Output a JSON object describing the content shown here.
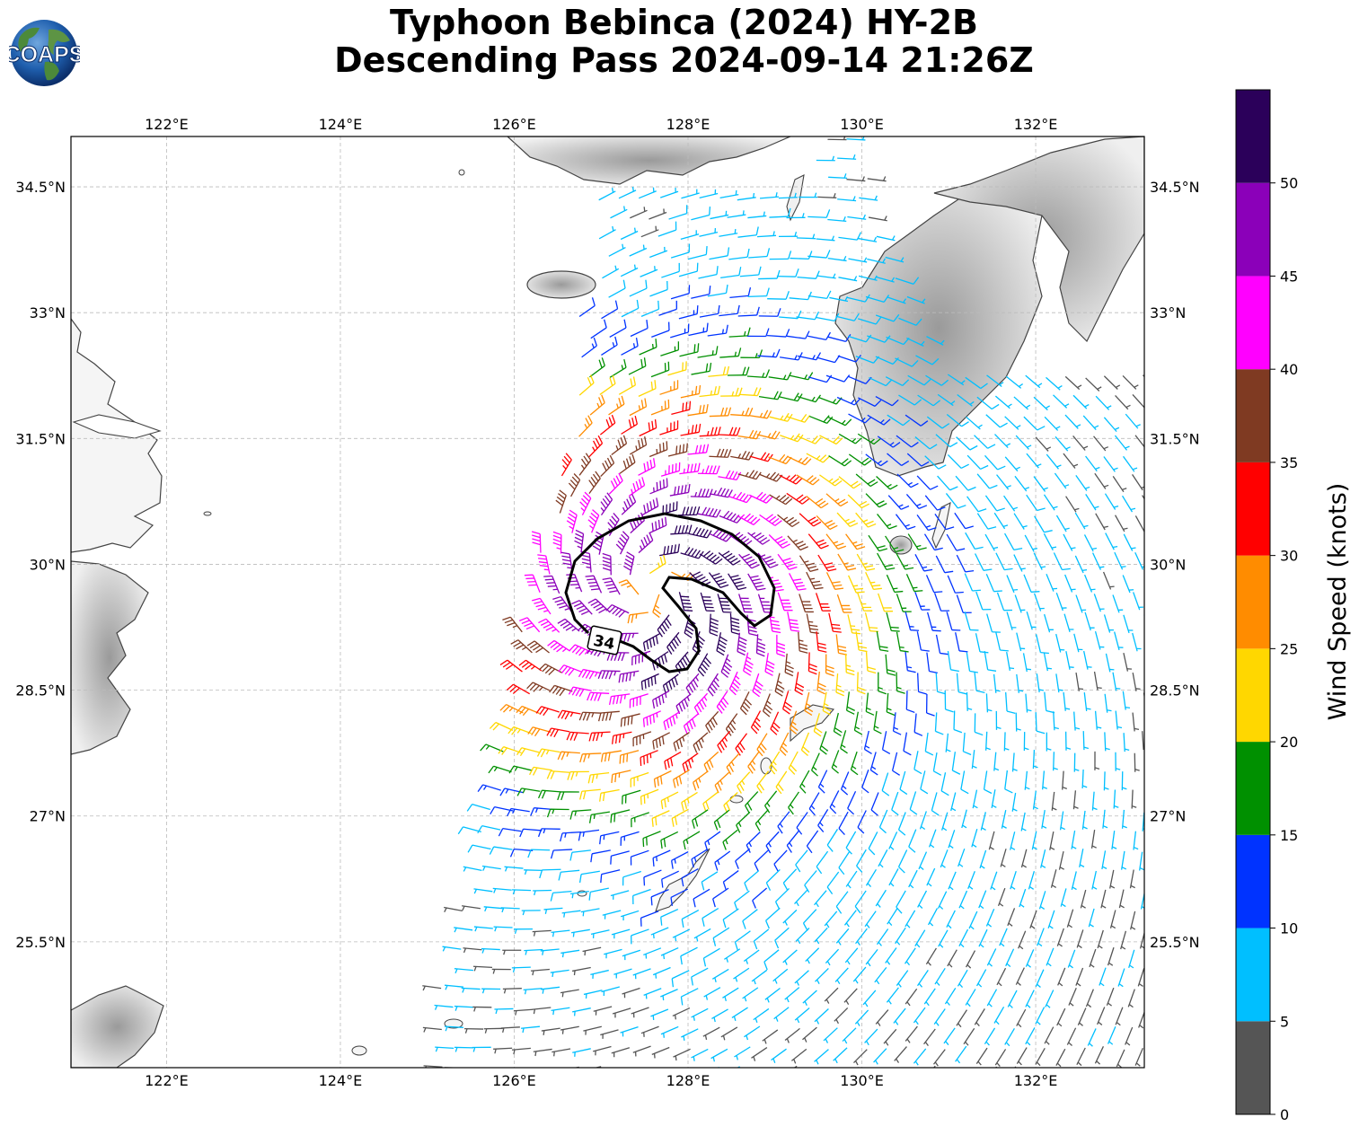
{
  "header": {
    "title_line1": "Typhoon Bebinca (2024) HY-2B",
    "title_line2": "Descending Pass 2024-09-14 21:26Z"
  },
  "logo": {
    "text": "COAPS"
  },
  "map": {
    "lon_range": [
      120.9,
      133.25
    ],
    "lat_range": [
      24.0,
      35.1
    ],
    "lon_ticks": [
      {
        "value": 122,
        "label": "122°E"
      },
      {
        "value": 124,
        "label": "124°E"
      },
      {
        "value": 126,
        "label": "126°E"
      },
      {
        "value": 128,
        "label": "128°E"
      },
      {
        "value": 130,
        "label": "130°E"
      },
      {
        "value": 132,
        "label": "132°E"
      }
    ],
    "lat_ticks": [
      {
        "value": 34.5,
        "label": "34.5°N"
      },
      {
        "value": 33.0,
        "label": "33°N"
      },
      {
        "value": 31.5,
        "label": "31.5°N"
      },
      {
        "value": 30.0,
        "label": "30°N"
      },
      {
        "value": 28.5,
        "label": "28.5°N"
      },
      {
        "value": 27.0,
        "label": "27°N"
      },
      {
        "value": 25.5,
        "label": "25.5°N"
      }
    ],
    "gridlines": true,
    "storm_center": {
      "lon": 127.6,
      "lat": 29.7
    },
    "contour": {
      "label": "34",
      "units": "knots"
    }
  },
  "colorbar": {
    "label": "Wind Speed (knots)",
    "ticks": [
      "0",
      "5",
      "10",
      "15",
      "20",
      "25",
      "30",
      "35",
      "40",
      "45",
      "50"
    ],
    "bins": [
      {
        "min": 0,
        "max": 5,
        "color": "#555555"
      },
      {
        "min": 5,
        "max": 10,
        "color": "#00bfff"
      },
      {
        "min": 10,
        "max": 15,
        "color": "#0033ff"
      },
      {
        "min": 15,
        "max": 20,
        "color": "#009000"
      },
      {
        "min": 20,
        "max": 25,
        "color": "#ffd700"
      },
      {
        "min": 25,
        "max": 30,
        "color": "#ff8c00"
      },
      {
        "min": 30,
        "max": 35,
        "color": "#ff0000"
      },
      {
        "min": 35,
        "max": 40,
        "color": "#7f3a22"
      },
      {
        "min": 40,
        "max": 45,
        "color": "#ff00ff"
      },
      {
        "min": 45,
        "max": 50,
        "color": "#8b00b9"
      },
      {
        "min": 50,
        "max": 55,
        "color": "#2b005a"
      }
    ]
  }
}
